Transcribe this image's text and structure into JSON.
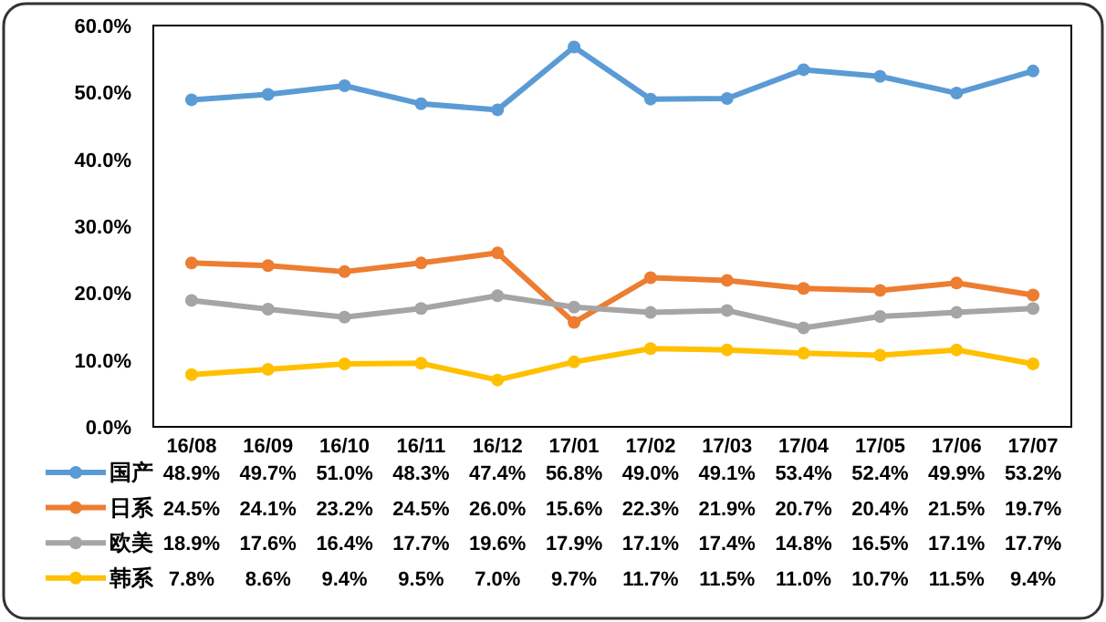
{
  "chart_data": {
    "type": "line",
    "categories": [
      "16/08",
      "16/09",
      "16/10",
      "16/11",
      "16/12",
      "17/01",
      "17/02",
      "17/03",
      "17/04",
      "17/05",
      "17/06",
      "17/07"
    ],
    "series": [
      {
        "name": "国产",
        "color": "#5b9bd5",
        "values": [
          48.9,
          49.7,
          51.0,
          48.3,
          47.4,
          56.8,
          49.0,
          49.1,
          53.4,
          52.4,
          49.9,
          53.2
        ],
        "value_labels": [
          "48.9%",
          "49.7%",
          "51.0%",
          "48.3%",
          "47.4%",
          "56.8%",
          "49.0%",
          "49.1%",
          "53.4%",
          "52.4%",
          "49.9%",
          "53.2%"
        ]
      },
      {
        "name": "日系",
        "color": "#ed7d31",
        "values": [
          24.5,
          24.1,
          23.2,
          24.5,
          26.0,
          15.6,
          22.3,
          21.9,
          20.7,
          20.4,
          21.5,
          19.7
        ],
        "value_labels": [
          "24.5%",
          "24.1%",
          "23.2%",
          "24.5%",
          "26.0%",
          "15.6%",
          "22.3%",
          "21.9%",
          "20.7%",
          "20.4%",
          "21.5%",
          "19.7%"
        ]
      },
      {
        "name": "欧美",
        "color": "#a5a5a5",
        "values": [
          18.9,
          17.6,
          16.4,
          17.7,
          19.6,
          17.9,
          17.1,
          17.4,
          14.8,
          16.5,
          17.1,
          17.7
        ],
        "value_labels": [
          "18.9%",
          "17.6%",
          "16.4%",
          "17.7%",
          "19.6%",
          "17.9%",
          "17.1%",
          "17.4%",
          "14.8%",
          "16.5%",
          "17.1%",
          "17.7%"
        ]
      },
      {
        "name": "韩系",
        "color": "#ffc000",
        "values": [
          7.8,
          8.6,
          9.4,
          9.5,
          7.0,
          9.7,
          11.7,
          11.5,
          11.0,
          10.7,
          11.5,
          9.4
        ],
        "value_labels": [
          "7.8%",
          "8.6%",
          "9.4%",
          "9.5%",
          "7.0%",
          "9.7%",
          "11.7%",
          "11.5%",
          "11.0%",
          "10.7%",
          "11.5%",
          "9.4%"
        ]
      }
    ],
    "ylim": [
      0,
      60
    ],
    "yticks": [
      {
        "value": 0,
        "label": "0.0%"
      },
      {
        "value": 10,
        "label": "10.0%"
      },
      {
        "value": 20,
        "label": "20.0%"
      },
      {
        "value": 30,
        "label": "30.0%"
      },
      {
        "value": 40,
        "label": "40.0%"
      },
      {
        "value": 50,
        "label": "50.0%"
      },
      {
        "value": 60,
        "label": "60.0%"
      }
    ],
    "marker": "circle",
    "line_style": "solid",
    "legend": "bottom left",
    "grid": false
  }
}
